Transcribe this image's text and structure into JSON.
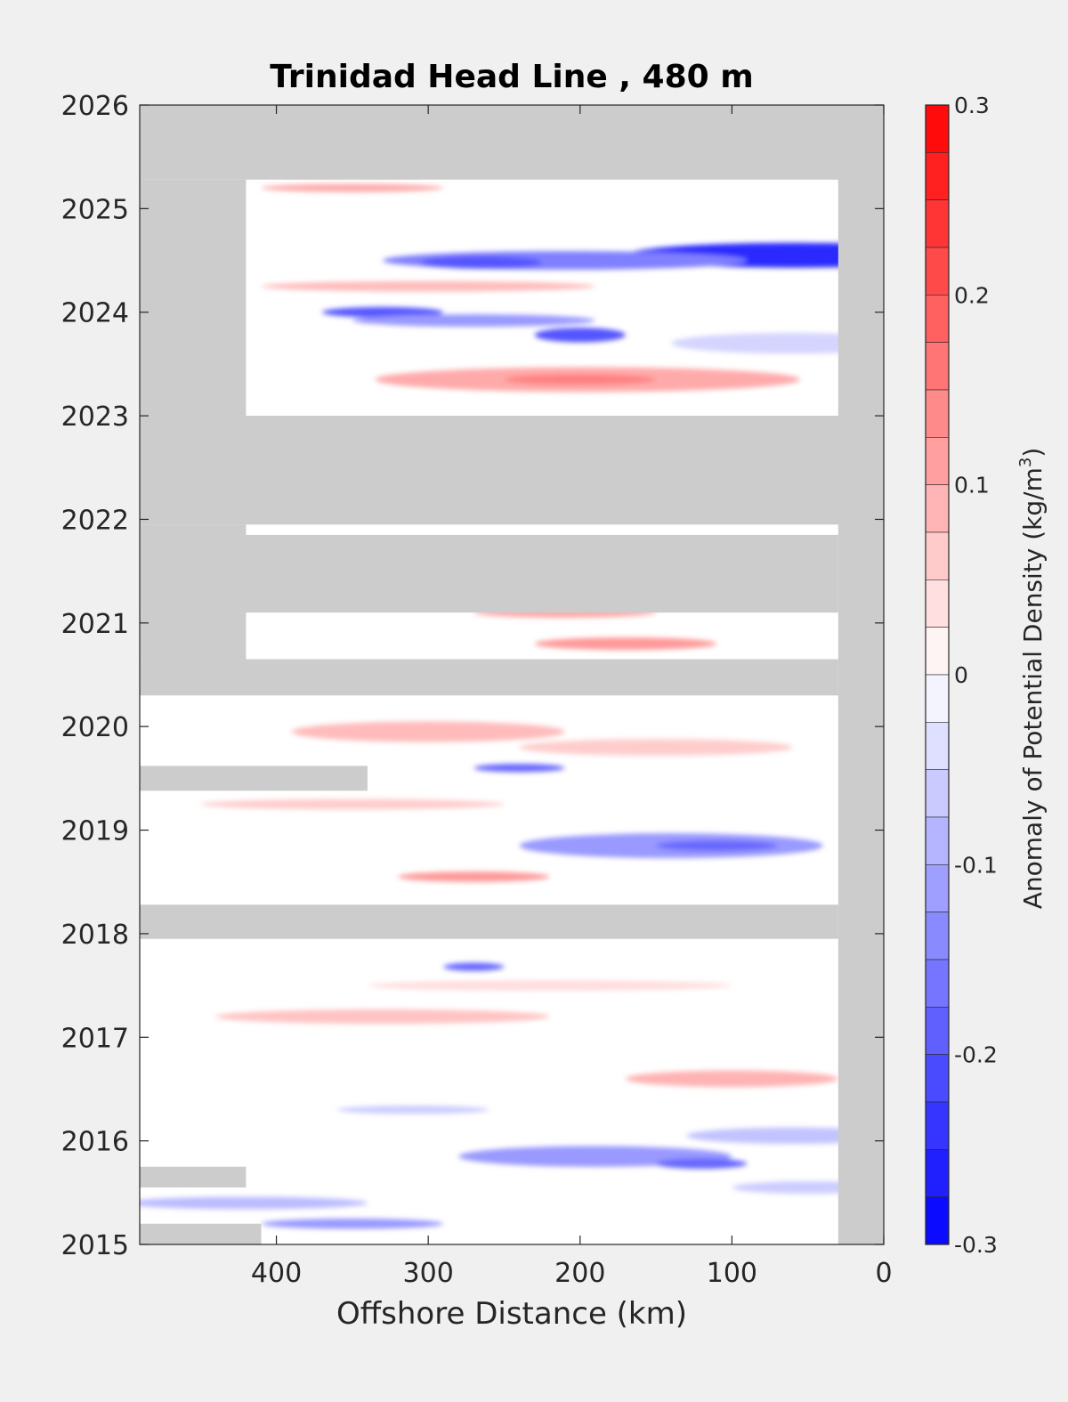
{
  "chart_data": {
    "type": "heatmap",
    "title": "Trinidad Head Line , 480 m",
    "xlabel": "Offshore Distance (km)",
    "ylabel": "",
    "x_axis_reversed": true,
    "xlim": [
      0,
      490
    ],
    "ylim": [
      2015,
      2026
    ],
    "x_ticks": [
      "400",
      "300",
      "200",
      "100",
      "0"
    ],
    "x_tick_values": [
      400,
      300,
      200,
      100,
      0
    ],
    "y_ticks": [
      "2015",
      "2016",
      "2017",
      "2018",
      "2019",
      "2020",
      "2021",
      "2022",
      "2023",
      "2024",
      "2025",
      "2026"
    ],
    "y_tick_values": [
      2015,
      2016,
      2017,
      2018,
      2019,
      2020,
      2021,
      2022,
      2023,
      2024,
      2025,
      2026
    ],
    "colorbar": {
      "label": "Anomaly of Potential Density (kg/m",
      "label_superscript": "3",
      "label_close": ")",
      "range": [
        -0.3,
        0.3
      ],
      "step": 0.025,
      "ticks": [
        "0.3",
        "0.2",
        "0.1",
        "0",
        "-0.1",
        "-0.2",
        "-0.3"
      ],
      "tick_values": [
        0.3,
        0.2,
        0.1,
        0,
        -0.1,
        -0.2,
        -0.3
      ],
      "neg_color": "#0000ff",
      "pos_color": "#ff0000",
      "mid_color": "#ffffff"
    },
    "missing_color": "#cccccc",
    "no_data_regions": [
      {
        "x": [
          0,
          490
        ],
        "y": [
          2025.28,
          2026
        ]
      },
      {
        "x": [
          0,
          30
        ],
        "y": [
          2015,
          2026
        ]
      },
      {
        "x": [
          420,
          490
        ],
        "y": [
          2023.0,
          2025.28
        ]
      },
      {
        "x": [
          0,
          490
        ],
        "y": [
          2021.95,
          2023.0
        ]
      },
      {
        "x": [
          30,
          490
        ],
        "y": [
          2021.1,
          2021.85
        ]
      },
      {
        "x": [
          420,
          490
        ],
        "y": [
          2021.1,
          2021.95
        ]
      },
      {
        "x": [
          30,
          490
        ],
        "y": [
          2020.3,
          2020.65
        ]
      },
      {
        "x": [
          420,
          490
        ],
        "y": [
          2020.65,
          2021.1
        ]
      },
      {
        "x": [
          30,
          490
        ],
        "y": [
          2017.95,
          2018.28
        ]
      },
      {
        "x": [
          340,
          490
        ],
        "y": [
          2019.38,
          2019.62
        ]
      },
      {
        "x": [
          420,
          490
        ],
        "y": [
          2015.55,
          2015.75
        ]
      },
      {
        "x": [
          410,
          490
        ],
        "y": [
          2015.0,
          2015.2
        ]
      }
    ],
    "anomaly_features": [
      {
        "x": 60,
        "y": 2024.55,
        "rx": 110,
        "ry": 0.12,
        "value": -0.25
      },
      {
        "x": 210,
        "y": 2024.5,
        "rx": 120,
        "ry": 0.09,
        "value": -0.15
      },
      {
        "x": 265,
        "y": 2024.48,
        "rx": 40,
        "ry": 0.06,
        "value": -0.2
      },
      {
        "x": 330,
        "y": 2024.0,
        "rx": 40,
        "ry": 0.05,
        "value": -0.2
      },
      {
        "x": 200,
        "y": 2023.78,
        "rx": 30,
        "ry": 0.07,
        "value": -0.2
      },
      {
        "x": 270,
        "y": 2023.92,
        "rx": 80,
        "ry": 0.06,
        "value": -0.12
      },
      {
        "x": 195,
        "y": 2023.35,
        "rx": 140,
        "ry": 0.12,
        "value": 0.1
      },
      {
        "x": 200,
        "y": 2023.35,
        "rx": 50,
        "ry": 0.05,
        "value": 0.15
      },
      {
        "x": 350,
        "y": 2025.2,
        "rx": 60,
        "ry": 0.04,
        "value": 0.1
      },
      {
        "x": 300,
        "y": 2024.25,
        "rx": 110,
        "ry": 0.05,
        "value": 0.08
      },
      {
        "x": 60,
        "y": 2023.7,
        "rx": 80,
        "ry": 0.1,
        "value": -0.05
      },
      {
        "x": 210,
        "y": 2021.1,
        "rx": 60,
        "ry": 0.05,
        "value": 0.1
      },
      {
        "x": 170,
        "y": 2020.8,
        "rx": 60,
        "ry": 0.06,
        "value": 0.12
      },
      {
        "x": 300,
        "y": 2019.95,
        "rx": 90,
        "ry": 0.1,
        "value": 0.08
      },
      {
        "x": 150,
        "y": 2019.8,
        "rx": 90,
        "ry": 0.08,
        "value": 0.06
      },
      {
        "x": 240,
        "y": 2019.6,
        "rx": 30,
        "ry": 0.04,
        "value": -0.18
      },
      {
        "x": 140,
        "y": 2018.85,
        "rx": 100,
        "ry": 0.12,
        "value": -0.12
      },
      {
        "x": 110,
        "y": 2018.85,
        "rx": 40,
        "ry": 0.05,
        "value": -0.18
      },
      {
        "x": 270,
        "y": 2018.55,
        "rx": 50,
        "ry": 0.05,
        "value": 0.12
      },
      {
        "x": 350,
        "y": 2019.25,
        "rx": 100,
        "ry": 0.05,
        "value": 0.06
      },
      {
        "x": 270,
        "y": 2017.68,
        "rx": 20,
        "ry": 0.04,
        "value": -0.18
      },
      {
        "x": 330,
        "y": 2017.2,
        "rx": 110,
        "ry": 0.07,
        "value": 0.07
      },
      {
        "x": 100,
        "y": 2016.6,
        "rx": 70,
        "ry": 0.08,
        "value": 0.09
      },
      {
        "x": 190,
        "y": 2015.85,
        "rx": 90,
        "ry": 0.1,
        "value": -0.12
      },
      {
        "x": 120,
        "y": 2015.78,
        "rx": 30,
        "ry": 0.05,
        "value": -0.18
      },
      {
        "x": 350,
        "y": 2015.2,
        "rx": 60,
        "ry": 0.05,
        "value": -0.12
      },
      {
        "x": 420,
        "y": 2015.4,
        "rx": 80,
        "ry": 0.06,
        "value": -0.08
      },
      {
        "x": 60,
        "y": 2016.05,
        "rx": 70,
        "ry": 0.08,
        "value": -0.07
      },
      {
        "x": 50,
        "y": 2015.55,
        "rx": 50,
        "ry": 0.06,
        "value": -0.06
      },
      {
        "x": 310,
        "y": 2016.3,
        "rx": 50,
        "ry": 0.04,
        "value": -0.06
      },
      {
        "x": 220,
        "y": 2017.5,
        "rx": 120,
        "ry": 0.05,
        "value": 0.04
      }
    ]
  }
}
